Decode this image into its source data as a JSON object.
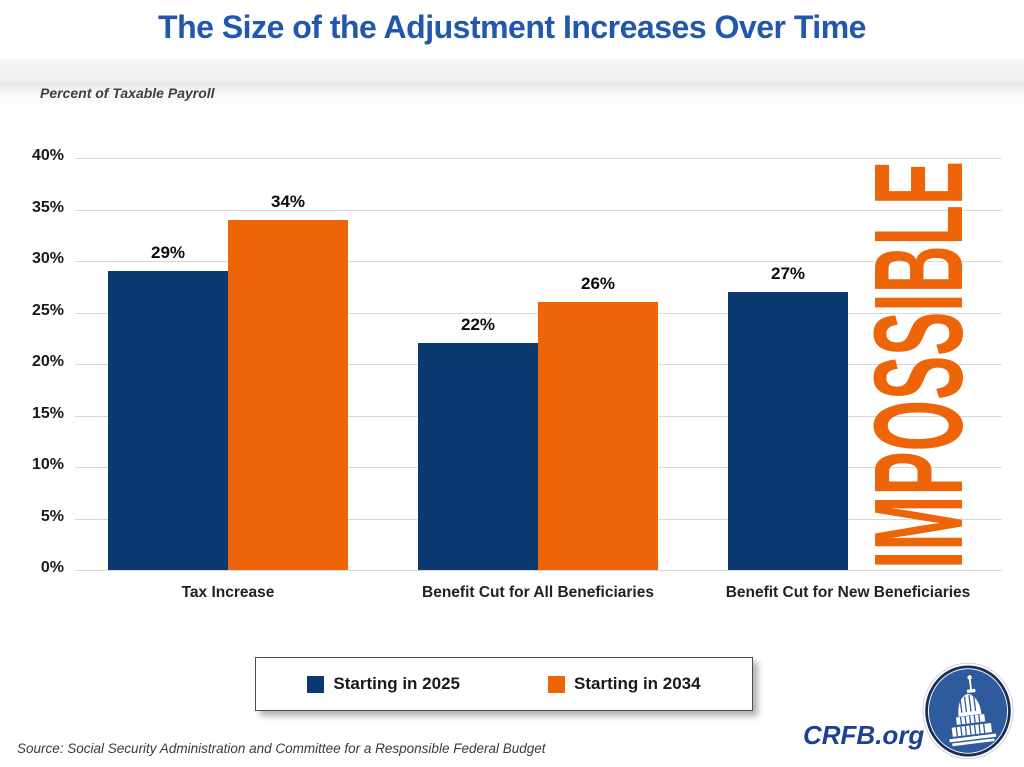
{
  "slide": {
    "title": "The Size of the Adjustment Increases Over Time",
    "axis_note": "Percent of Taxable Payroll",
    "source": "Source: Social Security Administration and Committee for a Responsible Federal Budget",
    "brand": "CRFB.org"
  },
  "colors": {
    "title_blue": "#2157ac",
    "series_2025_navy": "#0a3a70",
    "series_2034_orange": "#ee6408",
    "impossible_orange": "#ee6408",
    "brand_blue": "#1e4094",
    "logo_circle_blue": "#2e5a9e",
    "gridline_gray": "#d9d9d9"
  },
  "chart_data": {
    "type": "bar",
    "title": "The Size of the Adjustment Increases Over Time",
    "ylabel": "Percent of Taxable Payroll",
    "xlabel": "",
    "categories": [
      "Tax Increase",
      "Benefit Cut for All Beneficiaries",
      "Benefit Cut for New Beneficiaries"
    ],
    "series": [
      {
        "name": "Starting in 2025",
        "color": "#0a3a70",
        "values": [
          29,
          22,
          27
        ],
        "labels": [
          "29%",
          "22%",
          "27%"
        ]
      },
      {
        "name": "Starting in 2034",
        "color": "#ee6408",
        "values": [
          34,
          26,
          null
        ],
        "labels": [
          "34%",
          "26%",
          null
        ]
      }
    ],
    "annotations": [
      {
        "text": "IMPOSSIBLE",
        "category": "Benefit Cut for New Beneficiaries",
        "series": "Starting in 2034",
        "orientation": "vertical-bottom-to-top",
        "color": "#ee6408"
      }
    ],
    "ylim": [
      0,
      40
    ],
    "ytick_step": 5,
    "ytick_labels": [
      "0%",
      "5%",
      "10%",
      "15%",
      "20%",
      "25%",
      "30%",
      "35%",
      "40%"
    ],
    "grid": true,
    "legend_position": "bottom"
  }
}
